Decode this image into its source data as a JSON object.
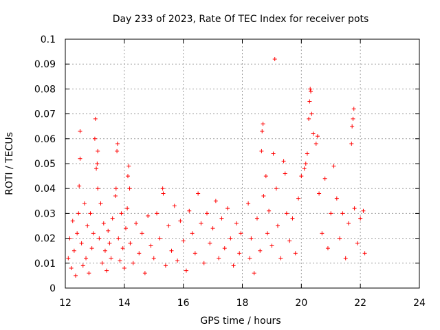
{
  "chart_data": {
    "type": "scatter",
    "title": "Day 233 of 2023, Rate Of TEC Index for receiver pots",
    "xlabel": "GPS time / hours",
    "ylabel": "ROTI / TECUs",
    "xlim": [
      12,
      24
    ],
    "ylim": [
      0,
      0.1
    ],
    "xticks": [
      12,
      14,
      16,
      18,
      20,
      22,
      24
    ],
    "xtick_labels": [
      "12",
      "14",
      "16",
      "18",
      "20",
      "22",
      "24"
    ],
    "yticks": [
      0,
      0.01,
      0.02,
      0.03,
      0.04,
      0.05,
      0.06,
      0.07,
      0.08,
      0.09,
      0.1
    ],
    "ytick_labels": [
      "0",
      "0.01",
      "0.02",
      "0.03",
      "0.04",
      "0.05",
      "0.06",
      "0.07",
      "0.08",
      "0.09",
      "0.1"
    ],
    "grid": true,
    "marker": "+",
    "color": "#ff0000",
    "series": [
      {
        "name": "ROTI",
        "points": [
          [
            12.1,
            0.012
          ],
          [
            12.15,
            0.02
          ],
          [
            12.2,
            0.008
          ],
          [
            12.25,
            0.027
          ],
          [
            12.3,
            0.015
          ],
          [
            12.35,
            0.005
          ],
          [
            12.4,
            0.022
          ],
          [
            12.45,
            0.03
          ],
          [
            12.47,
            0.041
          ],
          [
            12.5,
            0.052
          ],
          [
            12.5,
            0.063
          ],
          [
            12.55,
            0.018
          ],
          [
            12.6,
            0.009
          ],
          [
            12.65,
            0.034
          ],
          [
            12.7,
            0.012
          ],
          [
            12.75,
            0.025
          ],
          [
            12.8,
            0.006
          ],
          [
            12.85,
            0.03
          ],
          [
            12.9,
            0.016
          ],
          [
            12.95,
            0.022
          ],
          [
            13.0,
            0.06
          ],
          [
            13.02,
            0.068
          ],
          [
            13.05,
            0.048
          ],
          [
            13.08,
            0.05
          ],
          [
            13.1,
            0.04
          ],
          [
            13.1,
            0.055
          ],
          [
            13.15,
            0.02
          ],
          [
            13.2,
            0.034
          ],
          [
            13.25,
            0.01
          ],
          [
            13.3,
            0.026
          ],
          [
            13.35,
            0.015
          ],
          [
            13.4,
            0.007
          ],
          [
            13.45,
            0.023
          ],
          [
            13.5,
            0.018
          ],
          [
            13.55,
            0.012
          ],
          [
            13.6,
            0.028
          ],
          [
            13.7,
            0.037
          ],
          [
            13.72,
            0.04
          ],
          [
            13.75,
            0.055
          ],
          [
            13.77,
            0.058
          ],
          [
            13.8,
            0.02
          ],
          [
            13.85,
            0.011
          ],
          [
            13.9,
            0.03
          ],
          [
            13.95,
            0.016
          ],
          [
            14.0,
            0.008
          ],
          [
            14.05,
            0.024
          ],
          [
            14.1,
            0.032
          ],
          [
            14.12,
            0.045
          ],
          [
            14.15,
            0.049
          ],
          [
            14.18,
            0.04
          ],
          [
            14.2,
            0.018
          ],
          [
            14.3,
            0.01
          ],
          [
            14.4,
            0.026
          ],
          [
            14.5,
            0.014
          ],
          [
            14.6,
            0.022
          ],
          [
            14.7,
            0.006
          ],
          [
            14.8,
            0.029
          ],
          [
            14.9,
            0.017
          ],
          [
            15.0,
            0.012
          ],
          [
            15.1,
            0.03
          ],
          [
            15.2,
            0.02
          ],
          [
            15.3,
            0.04
          ],
          [
            15.32,
            0.038
          ],
          [
            15.4,
            0.009
          ],
          [
            15.5,
            0.025
          ],
          [
            15.6,
            0.015
          ],
          [
            15.7,
            0.033
          ],
          [
            15.8,
            0.011
          ],
          [
            15.9,
            0.027
          ],
          [
            16.0,
            0.019
          ],
          [
            16.1,
            0.007
          ],
          [
            16.2,
            0.031
          ],
          [
            16.3,
            0.022
          ],
          [
            16.4,
            0.014
          ],
          [
            16.5,
            0.038
          ],
          [
            16.6,
            0.026
          ],
          [
            16.7,
            0.01
          ],
          [
            16.8,
            0.03
          ],
          [
            16.9,
            0.018
          ],
          [
            17.0,
            0.024
          ],
          [
            17.1,
            0.035
          ],
          [
            17.2,
            0.012
          ],
          [
            17.3,
            0.028
          ],
          [
            17.4,
            0.016
          ],
          [
            17.5,
            0.032
          ],
          [
            17.6,
            0.02
          ],
          [
            17.7,
            0.009
          ],
          [
            17.8,
            0.026
          ],
          [
            17.9,
            0.014
          ],
          [
            17.95,
            0.022
          ],
          [
            18.2,
            0.034
          ],
          [
            18.25,
            0.012
          ],
          [
            18.3,
            0.02
          ],
          [
            18.4,
            0.006
          ],
          [
            18.5,
            0.028
          ],
          [
            18.6,
            0.015
          ],
          [
            18.65,
            0.055
          ],
          [
            18.67,
            0.063
          ],
          [
            18.7,
            0.066
          ],
          [
            18.72,
            0.037
          ],
          [
            18.8,
            0.045
          ],
          [
            18.85,
            0.022
          ],
          [
            18.9,
            0.031
          ],
          [
            19.0,
            0.017
          ],
          [
            19.05,
            0.054
          ],
          [
            19.1,
            0.092
          ],
          [
            19.15,
            0.04
          ],
          [
            19.2,
            0.025
          ],
          [
            19.3,
            0.012
          ],
          [
            19.4,
            0.051
          ],
          [
            19.45,
            0.046
          ],
          [
            19.5,
            0.03
          ],
          [
            19.6,
            0.019
          ],
          [
            19.7,
            0.028
          ],
          [
            19.8,
            0.014
          ],
          [
            19.9,
            0.036
          ],
          [
            20.0,
            0.045
          ],
          [
            20.1,
            0.048
          ],
          [
            20.15,
            0.05
          ],
          [
            20.2,
            0.054
          ],
          [
            20.25,
            0.068
          ],
          [
            20.28,
            0.075
          ],
          [
            20.3,
            0.08
          ],
          [
            20.32,
            0.079
          ],
          [
            20.35,
            0.07
          ],
          [
            20.4,
            0.062
          ],
          [
            20.5,
            0.058
          ],
          [
            20.55,
            0.061
          ],
          [
            20.6,
            0.038
          ],
          [
            20.7,
            0.022
          ],
          [
            20.8,
            0.044
          ],
          [
            20.9,
            0.016
          ],
          [
            21.0,
            0.03
          ],
          [
            21.1,
            0.049
          ],
          [
            21.2,
            0.036
          ],
          [
            21.3,
            0.02
          ],
          [
            21.4,
            0.03
          ],
          [
            21.5,
            0.012
          ],
          [
            21.6,
            0.026
          ],
          [
            21.7,
            0.058
          ],
          [
            21.72,
            0.065
          ],
          [
            21.75,
            0.068
          ],
          [
            21.78,
            0.072
          ],
          [
            21.8,
            0.032
          ],
          [
            21.9,
            0.018
          ],
          [
            22.0,
            0.028
          ],
          [
            22.1,
            0.031
          ],
          [
            22.15,
            0.014
          ]
        ]
      }
    ]
  }
}
